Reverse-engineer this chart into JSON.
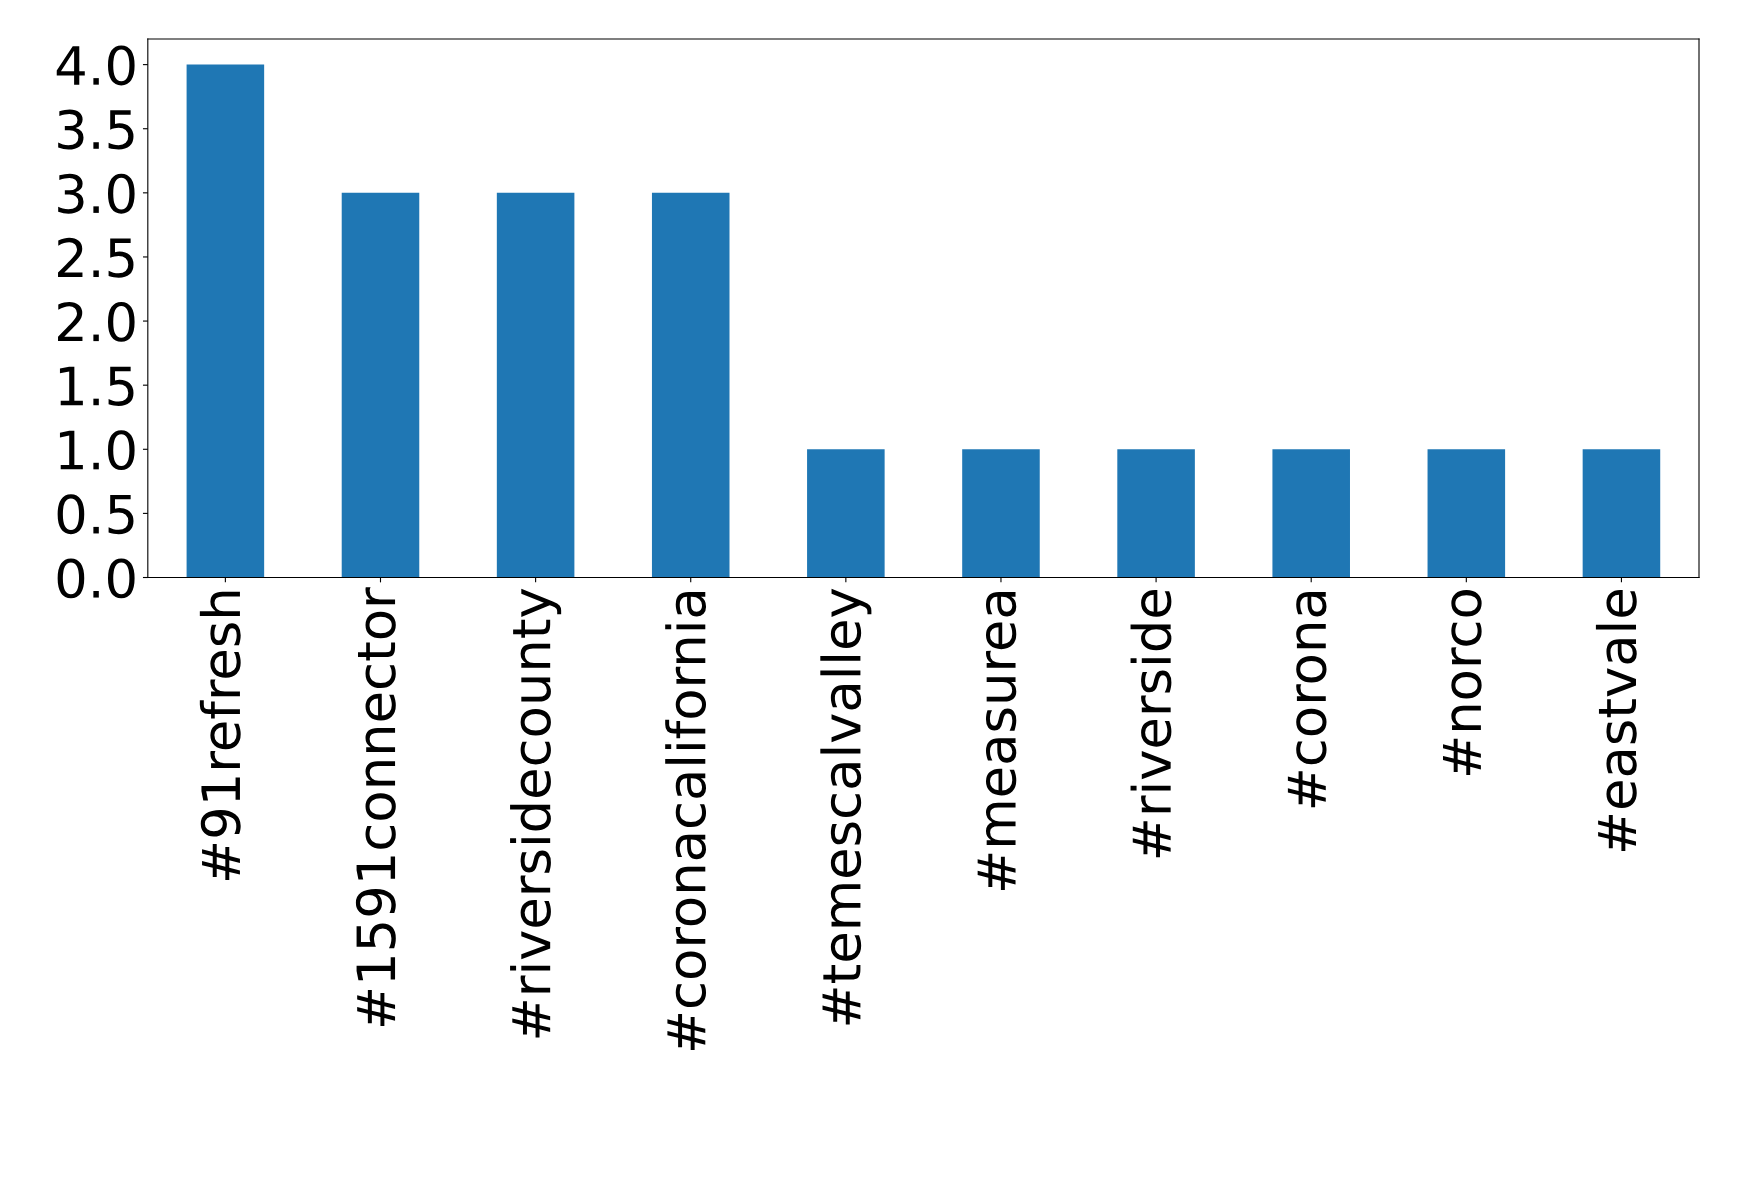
{
  "chart_data": {
    "type": "bar",
    "categories": [
      "#91refresh",
      "#1591connector",
      "#riversidecounty",
      "#coronacalifornia",
      "#temescalvalley",
      "#measurea",
      "#riverside",
      "#corona",
      "#norco",
      "#eastvale"
    ],
    "values": [
      4,
      3,
      3,
      3,
      1,
      1,
      1,
      1,
      1,
      1
    ],
    "color": "#1f77b4",
    "ylim": [
      0,
      4.2
    ],
    "yticks": [
      {
        "value": 0,
        "label": "0.0"
      },
      {
        "value": 0.5,
        "label": "0.5"
      },
      {
        "value": 1,
        "label": "1.0"
      },
      {
        "value": 1.5,
        "label": "1.5"
      },
      {
        "value": 2,
        "label": "2.0"
      },
      {
        "value": 2.5,
        "label": "2.5"
      },
      {
        "value": 3,
        "label": "3.0"
      },
      {
        "value": 3.5,
        "label": "3.5"
      },
      {
        "value": 4,
        "label": "4.0"
      }
    ],
    "grid": false,
    "legend": false
  }
}
